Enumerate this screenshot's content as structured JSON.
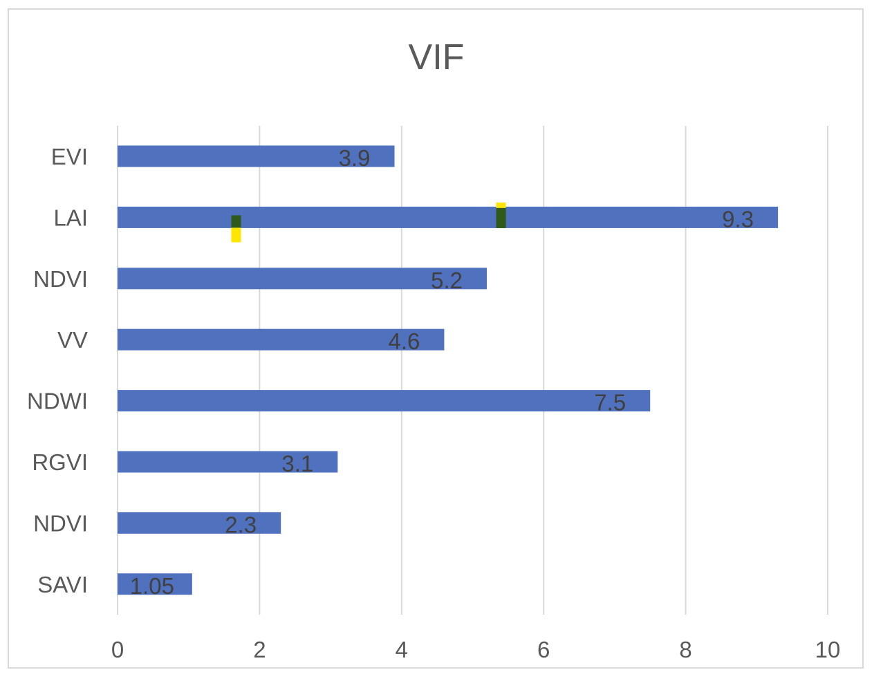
{
  "chart_data": {
    "type": "bar",
    "orientation": "horizontal",
    "title": "VIF",
    "xlabel": "",
    "ylabel": "",
    "categories": [
      "EVI",
      "LAI",
      "NDVI",
      "VV",
      "NDWI",
      "RGVI",
      "NDVI",
      "SAVI"
    ],
    "values": [
      3.9,
      9.3,
      5.2,
      4.6,
      7.5,
      3.1,
      2.3,
      1.05
    ],
    "data_labels": [
      "3.9",
      "9.3",
      "5.2",
      "4.6",
      "7.5",
      "3.1",
      "2.3",
      "1.05"
    ],
    "xlim": [
      0,
      10
    ],
    "xticks": [
      "0",
      "2",
      "4",
      "6",
      "8",
      "10"
    ],
    "grid": "vertical",
    "legend": "none",
    "bar_color": "#4f71be",
    "markers": [
      {
        "category": "LAI",
        "value": 1.67,
        "color_top": "#2f5a1a",
        "color_bottom": "#ffe600"
      },
      {
        "category": "LAI",
        "value": 5.4,
        "color_top": "#ffe600",
        "color_bottom": "#2f5a1a"
      }
    ]
  }
}
